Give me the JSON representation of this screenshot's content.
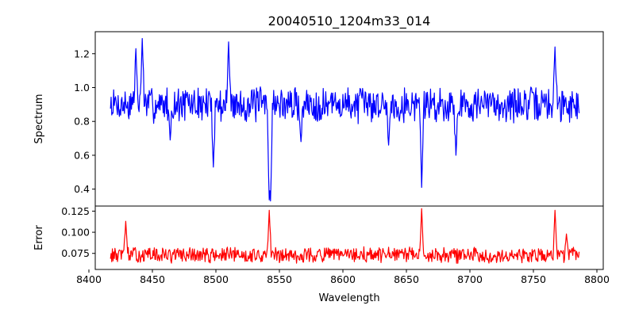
{
  "chart_data": {
    "title": "20040510_1204m33_014",
    "xlabel": "Wavelength",
    "xlim": [
      8405,
      8805
    ],
    "xticks": [
      8400,
      8450,
      8500,
      8550,
      8600,
      8650,
      8700,
      8750,
      8800
    ],
    "x_start": 8417,
    "x_end": 8786,
    "panels": [
      {
        "name": "spectrum",
        "type": "line",
        "ylabel": "Spectrum",
        "ylim": [
          0.3,
          1.33
        ],
        "yticks": [
          0.4,
          0.6,
          0.8,
          1.0,
          1.2
        ],
        "ytick_labels": [
          "0.4",
          "0.6",
          "0.8",
          "1.0",
          "1.2"
        ],
        "color": "#0000ff",
        "baseline": 0.9,
        "noise": 0.09,
        "seed": 7,
        "features": [
          {
            "x": 8437,
            "y": 1.23
          },
          {
            "x": 8442,
            "y": 1.29
          },
          {
            "x": 8464,
            "y": 0.69
          },
          {
            "x": 8498,
            "y": 0.53
          },
          {
            "x": 8510,
            "y": 1.27
          },
          {
            "x": 8542,
            "y": 0.34
          },
          {
            "x": 8543,
            "y": 0.33
          },
          {
            "x": 8567,
            "y": 0.68
          },
          {
            "x": 8636,
            "y": 0.66
          },
          {
            "x": 8662,
            "y": 0.41
          },
          {
            "x": 8689,
            "y": 0.6
          },
          {
            "x": 8767,
            "y": 1.24
          }
        ]
      },
      {
        "name": "error",
        "type": "line",
        "ylabel": "Error",
        "ylim": [
          0.056,
          0.131
        ],
        "yticks": [
          0.075,
          0.1,
          0.125
        ],
        "ytick_labels": [
          "0.075",
          "0.100",
          "0.125"
        ],
        "color": "#ff0000",
        "baseline": 0.073,
        "noise": 0.008,
        "seed": 13,
        "features": [
          {
            "x": 8429,
            "y": 0.113
          },
          {
            "x": 8542,
            "y": 0.126
          },
          {
            "x": 8662,
            "y": 0.128
          },
          {
            "x": 8767,
            "y": 0.126
          },
          {
            "x": 8776,
            "y": 0.098
          }
        ]
      }
    ]
  }
}
